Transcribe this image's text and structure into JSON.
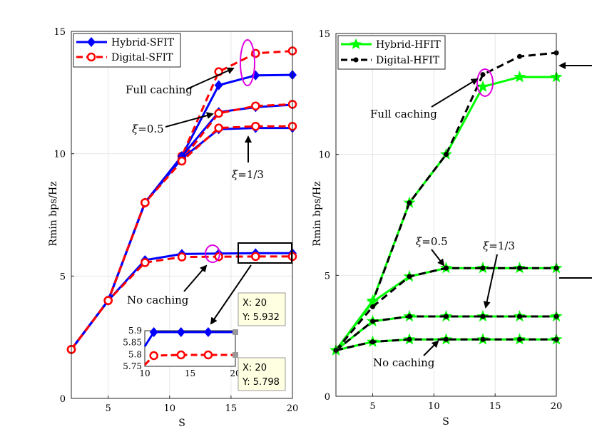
{
  "chart_data": [
    {
      "type": "line",
      "id": "left",
      "xlabel": "S",
      "ylabel": "Rmin bps/Hz",
      "xlim": [
        2,
        20
      ],
      "ylim": [
        0,
        15
      ],
      "xticks": [
        5,
        10,
        15,
        20
      ],
      "yticks": [
        0,
        5,
        10,
        15
      ],
      "x": [
        2,
        5,
        8,
        11,
        14,
        17,
        20
      ],
      "legend": [
        {
          "name": "Hybrid-SFIT",
          "color": "#0000ff",
          "marker": "diamond",
          "dash": false
        },
        {
          "name": "Digital-SFIT",
          "color": "#ff0000",
          "marker": "circle",
          "dash": true
        }
      ],
      "series": [
        {
          "name": "Hybrid-SFIT (Full caching)",
          "color": "#0000ff",
          "marker": "diamond",
          "dash": false,
          "values": [
            2.0,
            4.0,
            8.0,
            9.9,
            12.8,
            13.2,
            13.22
          ]
        },
        {
          "name": "Digital-SFIT (Full caching)",
          "color": "#ff0000",
          "marker": "circle",
          "dash": true,
          "values": [
            2.0,
            4.0,
            8.0,
            9.9,
            13.35,
            14.1,
            14.2
          ]
        },
        {
          "name": "Hybrid-SFIT (xi=0.5)",
          "color": "#0000ff",
          "marker": "diamond",
          "dash": false,
          "values": [
            2.0,
            4.0,
            8.0,
            9.9,
            11.7,
            11.9,
            12.0
          ]
        },
        {
          "name": "Digital-SFIT (xi=0.5)",
          "color": "#ff0000",
          "marker": "circle",
          "dash": true,
          "values": [
            2.0,
            4.0,
            8.0,
            9.75,
            11.65,
            11.95,
            12.02
          ]
        },
        {
          "name": "Hybrid-SFIT (xi=1/3)",
          "color": "#0000ff",
          "marker": "diamond",
          "dash": false,
          "values": [
            2.0,
            4.0,
            8.0,
            9.8,
            11.0,
            11.05,
            11.05
          ]
        },
        {
          "name": "Digital-SFIT (xi=1/3)",
          "color": "#ff0000",
          "marker": "circle",
          "dash": true,
          "values": [
            2.0,
            4.0,
            8.0,
            9.7,
            11.05,
            11.12,
            11.12
          ]
        },
        {
          "name": "Hybrid-SFIT (No caching)",
          "color": "#0000ff",
          "marker": "diamond",
          "dash": false,
          "values": [
            2.0,
            4.0,
            5.65,
            5.9,
            5.92,
            5.932,
            5.932
          ]
        },
        {
          "name": "Digital-SFIT (No caching)",
          "color": "#ff0000",
          "marker": "circle",
          "dash": true,
          "values": [
            2.0,
            4.0,
            5.55,
            5.78,
            5.79,
            5.798,
            5.798
          ]
        }
      ],
      "annotations": [
        {
          "id": "full",
          "text": "Full caching"
        },
        {
          "id": "xi05",
          "pre": "ξ",
          "text": "=0.5"
        },
        {
          "id": "xi13",
          "pre": "ξ",
          "text": "=1/3"
        },
        {
          "id": "none",
          "text": "No caching"
        }
      ],
      "inset": {
        "xlim": [
          10,
          20
        ],
        "ylim": [
          5.75,
          5.9
        ],
        "xticks": [
          10,
          15,
          20
        ],
        "yticks": [
          "5.9",
          "5.85",
          "5.8",
          "5.75"
        ],
        "x": [
          11,
          14,
          17,
          20
        ],
        "hybrid": [
          5.93,
          5.932,
          5.932,
          5.932
        ],
        "digital": [
          5.795,
          5.798,
          5.798,
          5.798
        ]
      },
      "datatips": [
        {
          "x_label": "X: 20",
          "y_label": "Y: 5.932"
        },
        {
          "x_label": "X: 20",
          "y_label": "Y: 5.798"
        }
      ]
    },
    {
      "type": "line",
      "id": "right",
      "xlabel": "S",
      "ylabel": "Rmin bps/Hz",
      "xlim": [
        2,
        20
      ],
      "ylim": [
        0,
        15
      ],
      "xticks": [
        5,
        10,
        15,
        20
      ],
      "yticks": [
        0,
        5,
        10,
        15
      ],
      "x": [
        2,
        5,
        8,
        11,
        14,
        17,
        20
      ],
      "legend": [
        {
          "name": "Hybrid-HFIT",
          "color": "#00ff00",
          "marker": "star",
          "dash": false
        },
        {
          "name": "Digital-HFIT",
          "color": "#000000",
          "marker": "dot",
          "dash": true
        }
      ],
      "series": [
        {
          "name": "Hybrid-HFIT (Full caching)",
          "color": "#00ff00",
          "marker": "star",
          "dash": false,
          "values": [
            1.9,
            3.95,
            8.0,
            10.0,
            12.8,
            13.2,
            13.2
          ]
        },
        {
          "name": "Digital-HFIT (Full caching)",
          "color": "#000000",
          "marker": "dot",
          "dash": true,
          "values": [
            1.9,
            3.9,
            8.0,
            10.0,
            13.3,
            14.05,
            14.2
          ]
        },
        {
          "name": "Hybrid-HFIT (xi=0.5)",
          "color": "#00ff00",
          "marker": "star",
          "dash": false,
          "values": [
            1.9,
            3.9,
            4.95,
            5.3,
            5.3,
            5.3,
            5.3
          ]
        },
        {
          "name": "Digital-HFIT (xi=0.5)",
          "color": "#000000",
          "marker": "dot",
          "dash": true,
          "values": [
            1.9,
            3.7,
            4.95,
            5.3,
            5.3,
            5.3,
            5.3
          ]
        },
        {
          "name": "Hybrid-HFIT (xi=1/3)",
          "color": "#00ff00",
          "marker": "star",
          "dash": false,
          "values": [
            1.9,
            3.1,
            3.3,
            3.3,
            3.3,
            3.3,
            3.3
          ]
        },
        {
          "name": "Digital-HFIT (xi=1/3)",
          "color": "#000000",
          "marker": "dot",
          "dash": true,
          "values": [
            1.9,
            3.1,
            3.3,
            3.3,
            3.3,
            3.3,
            3.3
          ]
        },
        {
          "name": "Hybrid-HFIT (No caching)",
          "color": "#00ff00",
          "marker": "star",
          "dash": false,
          "values": [
            1.9,
            2.25,
            2.35,
            2.35,
            2.35,
            2.35,
            2.35
          ]
        },
        {
          "name": "Digital-HFIT (No caching)",
          "color": "#000000",
          "marker": "dot",
          "dash": true,
          "values": [
            1.9,
            2.25,
            2.35,
            2.35,
            2.35,
            2.35,
            2.35
          ]
        }
      ],
      "annotations": [
        {
          "id": "full",
          "text": "Full caching"
        },
        {
          "id": "xi05",
          "pre": "ξ",
          "text": "=0.5"
        },
        {
          "id": "xi13",
          "pre": "ξ",
          "text": "=1/3"
        },
        {
          "id": "none",
          "text": "No caching"
        }
      ]
    }
  ]
}
